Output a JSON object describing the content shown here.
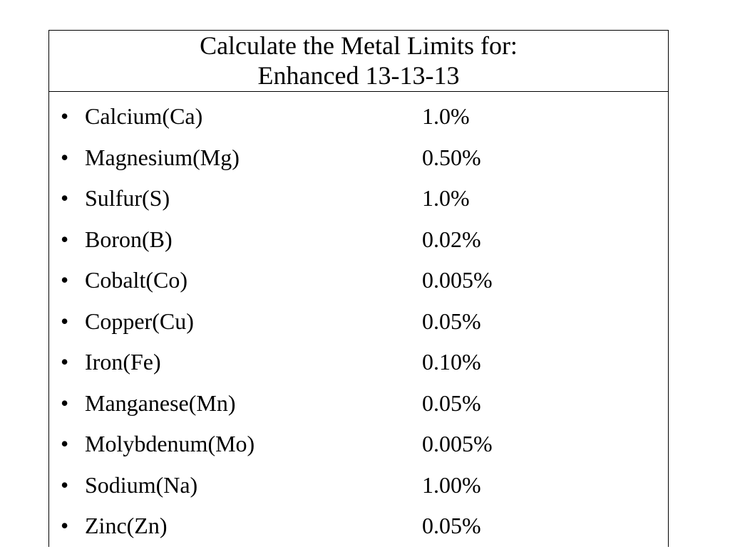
{
  "title": {
    "line1": "Calculate the Metal Limits for:",
    "line2": "Enhanced 13-13-13"
  },
  "bullet_glyph": "•",
  "elements": [
    {
      "name": "Calcium(Ca)",
      "limit": "1.0%"
    },
    {
      "name": "Magnesium(Mg)",
      "limit": "0.50%"
    },
    {
      "name": "Sulfur(S)",
      "limit": "1.0%"
    },
    {
      "name": "Boron(B)",
      "limit": "0.02%"
    },
    {
      "name": "Cobalt(Co)",
      "limit": "0.005%"
    },
    {
      "name": "Copper(Cu)",
      "limit": "0.05%"
    },
    {
      "name": "Iron(Fe)",
      "limit": "0.10%"
    },
    {
      "name": "Manganese(Mn)",
      "limit": "0.05%"
    },
    {
      "name": "Molybdenum(Mo)",
      "limit": "0.005%"
    },
    {
      "name": "Sodium(Na)",
      "limit": "1.00%"
    },
    {
      "name": "Zinc(Zn)",
      "limit": "0.05%"
    }
  ]
}
